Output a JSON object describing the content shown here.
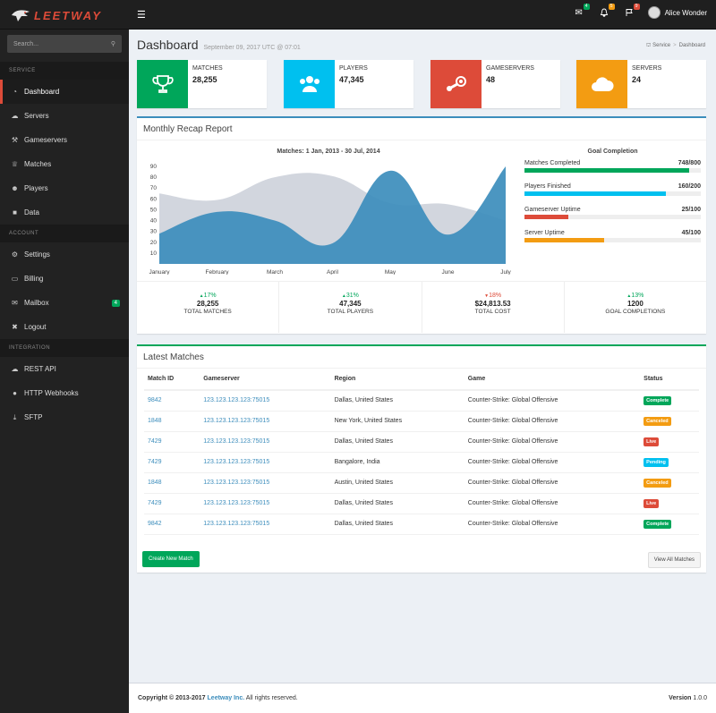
{
  "brand": {
    "name": "LEETWAY"
  },
  "header": {
    "user_name": "Alice Wonder",
    "badges": {
      "mail": "4",
      "bell": "5",
      "flag": "9"
    },
    "colors": {
      "mail": "#00a65a",
      "bell": "#f39c12",
      "flag": "#dd4b39"
    }
  },
  "sidebar": {
    "search_placeholder": "Search...",
    "sections": {
      "service": "SERVICE",
      "account": "ACCOUNT",
      "integration": "INTEGRATION"
    },
    "service_items": [
      {
        "label": "Dashboard",
        "icon": "dashboard-icon"
      },
      {
        "label": "Servers",
        "icon": "cloud-icon"
      },
      {
        "label": "Gameservers",
        "icon": "wrench-icon"
      },
      {
        "label": "Matches",
        "icon": "trophy-icon"
      },
      {
        "label": "Players",
        "icon": "users-icon"
      },
      {
        "label": "Data",
        "icon": "folder-icon"
      }
    ],
    "account_items": [
      {
        "label": "Settings",
        "icon": "gear-icon"
      },
      {
        "label": "Billing",
        "icon": "credit-card-icon"
      },
      {
        "label": "Mailbox",
        "icon": "envelope-icon",
        "badge": "4"
      },
      {
        "label": "Logout",
        "icon": "close-icon"
      }
    ],
    "integration_items": [
      {
        "label": "REST API",
        "icon": "cloud-icon"
      },
      {
        "label": "HTTP Webhooks",
        "icon": "globe-icon"
      },
      {
        "label": "SFTP",
        "icon": "download-icon"
      }
    ]
  },
  "page": {
    "title": "Dashboard",
    "subtitle": "September 09, 2017 UTC @ 07:01",
    "breadcrumb": [
      "Service",
      "Dashboard"
    ]
  },
  "info_boxes": [
    {
      "label": "MATCHES",
      "value": "28,255",
      "color": "#00a65a",
      "icon": "trophy-icon"
    },
    {
      "label": "PLAYERS",
      "value": "47,345",
      "color": "#00c0ef",
      "icon": "users-icon"
    },
    {
      "label": "GAMESERVERS",
      "value": "48",
      "color": "#dd4b39",
      "icon": "steam-icon"
    },
    {
      "label": "SERVERS",
      "value": "24",
      "color": "#f39c12",
      "icon": "cloud-icon"
    }
  ],
  "recap": {
    "title": "Monthly Recap Report",
    "chart_title": "Matches: 1 Jan, 2013 - 30 Jul, 2014",
    "goal_title": "Goal Completion",
    "goals": [
      {
        "label": "Matches Completed",
        "value": "748/800",
        "fraction": 0.935,
        "color": "#00a65a"
      },
      {
        "label": "Players Finished",
        "value": "160/200",
        "fraction": 0.8,
        "color": "#00c0ef"
      },
      {
        "label": "Gameserver Uptime",
        "value": "25/100",
        "fraction": 0.25,
        "color": "#dd4b39"
      },
      {
        "label": "Server Uptime",
        "value": "45/100",
        "fraction": 0.45,
        "color": "#f39c12"
      }
    ],
    "stats": [
      {
        "pct": "17%",
        "dir": "up",
        "value": "28,255",
        "label": "TOTAL MATCHES"
      },
      {
        "pct": "31%",
        "dir": "up",
        "value": "47,345",
        "label": "TOTAL PLAYERS"
      },
      {
        "pct": "18%",
        "dir": "down",
        "value": "$24,813.53",
        "label": "TOTAL COST"
      },
      {
        "pct": "13%",
        "dir": "up",
        "value": "1200",
        "label": "GOAL COMPLETIONS"
      }
    ]
  },
  "chart_data": {
    "type": "area",
    "title": "Matches: 1 Jan, 2013 - 30 Jul, 2014",
    "categories": [
      "January",
      "February",
      "March",
      "April",
      "May",
      "June",
      "July"
    ],
    "yticks": [
      10,
      20,
      30,
      40,
      50,
      60,
      70,
      80,
      90
    ],
    "ylim": [
      0,
      90
    ],
    "series": [
      {
        "values": [
          65,
          59,
          80,
          81,
          56,
          55,
          40
        ],
        "color": "#d2d6de"
      },
      {
        "values": [
          28,
          48,
          40,
          19,
          86,
          27,
          90
        ],
        "color": "#3c8dbc"
      }
    ],
    "grid": false
  },
  "matches": {
    "title": "Latest Matches",
    "columns": [
      "Match ID",
      "Gameserver",
      "Region",
      "Game",
      "Status"
    ],
    "rows": [
      [
        "9842",
        "123.123.123.123:75015",
        "Dallas, United States",
        "Counter-Strike: Global Offensive",
        "Complete"
      ],
      [
        "1848",
        "123.123.123.123:75015",
        "New York, United States",
        "Counter-Strike: Global Offensive",
        "Canceled"
      ],
      [
        "7429",
        "123.123.123.123:75015",
        "Dallas, United States",
        "Counter-Strike: Global Offensive",
        "Live"
      ],
      [
        "7429",
        "123.123.123.123:75015",
        "Bangalore, India",
        "Counter-Strike: Global Offensive",
        "Pending"
      ],
      [
        "1848",
        "123.123.123.123:75015",
        "Austin, United States",
        "Counter-Strike: Global Offensive",
        "Canceled"
      ],
      [
        "7429",
        "123.123.123.123:75015",
        "Dallas, United States",
        "Counter-Strike: Global Offensive",
        "Live"
      ],
      [
        "9842",
        "123.123.123.123:75015",
        "Dallas, United States",
        "Counter-Strike: Global Offensive",
        "Complete"
      ]
    ],
    "status_colors": {
      "Complete": "#00a65a",
      "Canceled": "#f39c12",
      "Live": "#dd4b39",
      "Pending": "#00c0ef"
    },
    "new_button": "Create New Match",
    "view_all": "View All Matches"
  },
  "footer": {
    "prefix": "Copyright © 2013-2017",
    "company": "Leetway Inc.",
    "suffix": "All rights reserved.",
    "version_label": "Version",
    "version": "1.0.0"
  }
}
